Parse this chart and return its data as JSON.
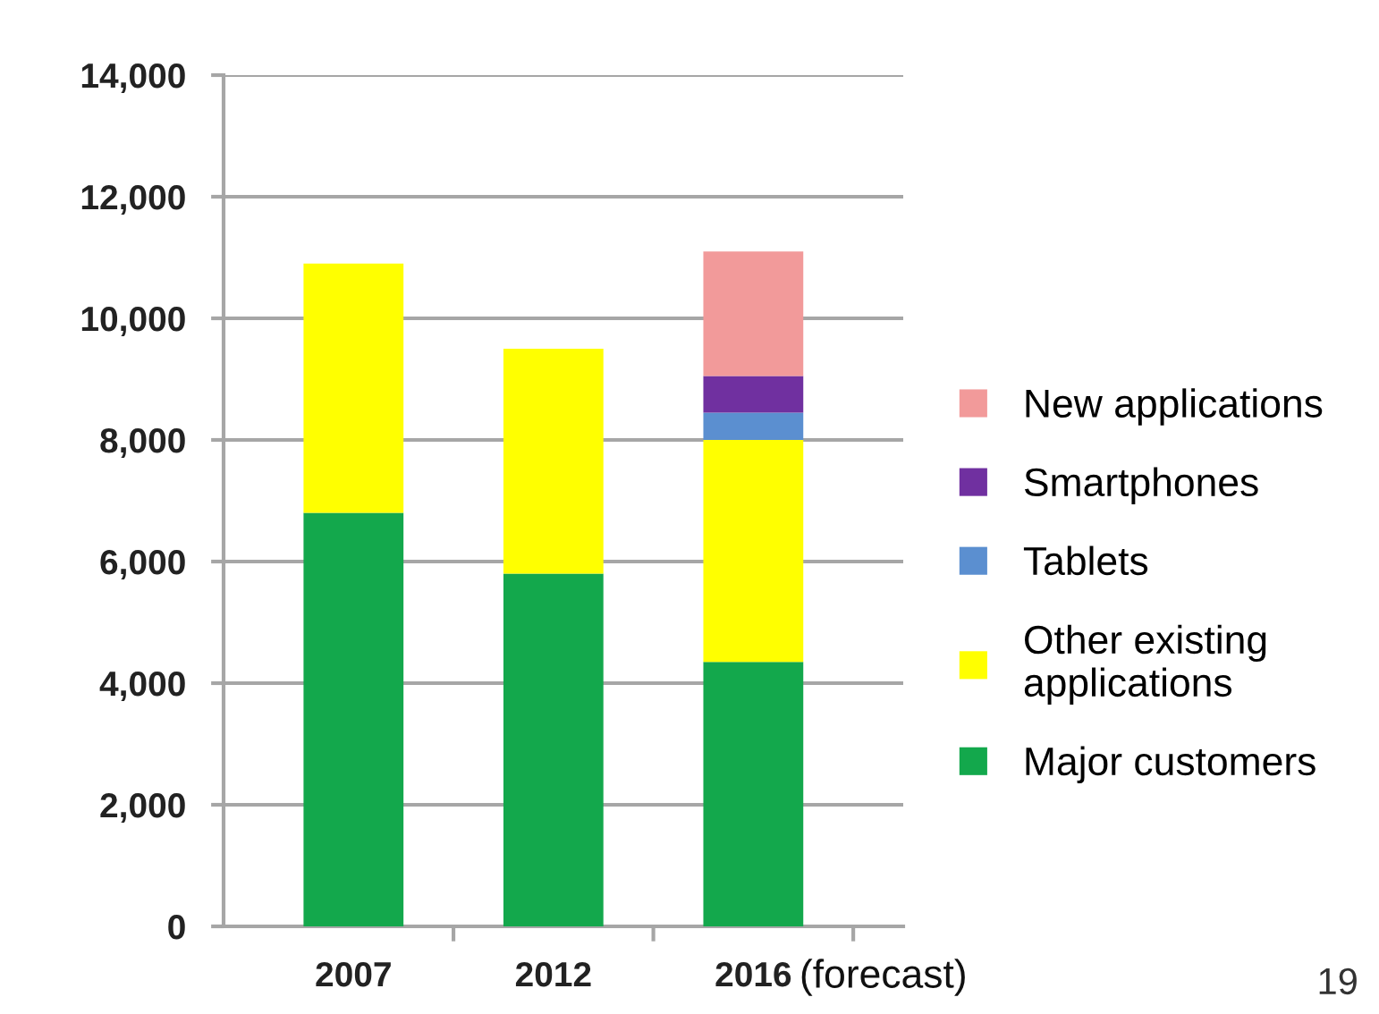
{
  "chart_data": {
    "type": "bar",
    "stacked": true,
    "categories": [
      "2007",
      "2012",
      "2016"
    ],
    "series": [
      {
        "name": "Major customers",
        "color": "#13a84c",
        "values": [
          6800,
          5800,
          4350
        ]
      },
      {
        "name": "Other existing\napplications",
        "color": "#ffff00",
        "values": [
          4100,
          3700,
          3650
        ]
      },
      {
        "name": "Tablets",
        "color": "#5b8fd0",
        "values": [
          null,
          null,
          450
        ]
      },
      {
        "name": "Smartphones",
        "color": "#7030a0",
        "values": [
          null,
          null,
          600
        ]
      },
      {
        "name": "New applications",
        "color": "#f29a9a",
        "values": [
          null,
          null,
          2050
        ]
      }
    ],
    "ylim": [
      0,
      14000
    ],
    "yticks": [
      0,
      {
        "value": 2000,
        "label": "2,000"
      },
      {
        "value": 4000,
        "label": "4,000"
      },
      {
        "value": 6000,
        "label": "6,000"
      },
      {
        "value": 8000,
        "label": "8,000"
      },
      {
        "value": 10000,
        "label": "10,000"
      },
      {
        "value": 12000,
        "label": "12,000"
      },
      {
        "value": 14000,
        "label": "14,000"
      }
    ],
    "grid": "y",
    "legend": "right",
    "annotations": [
      "(forecast)",
      "19"
    ]
  }
}
